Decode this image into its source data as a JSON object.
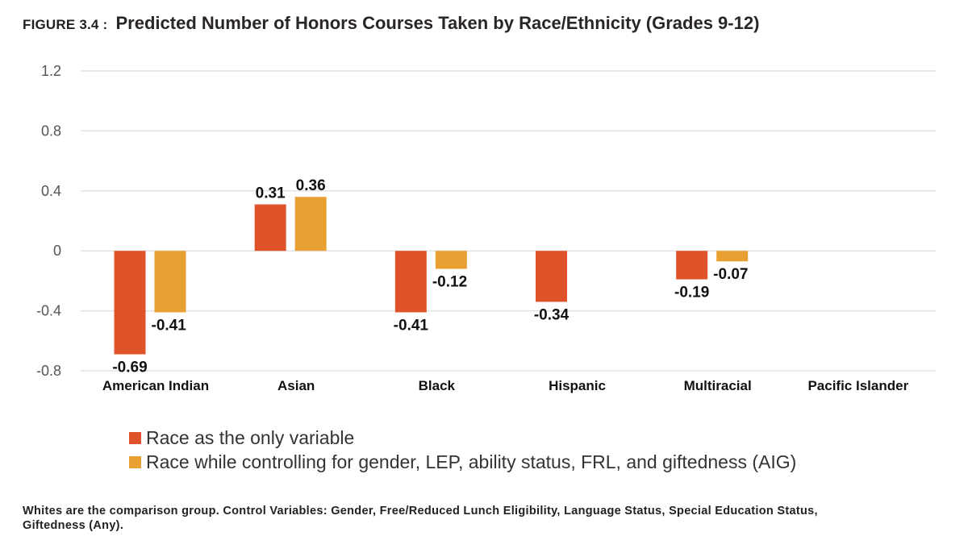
{
  "figure_label": "FIGURE 3.4 :",
  "title": "Predicted Number of Honors Courses Taken by Race/Ethnicity (Grades 9-12)",
  "note": "Whites are the comparison group. Control Variables: Gender, Free/Reduced Lunch Eligibility, Language Status, Special Education Status, Giftedness (Any).",
  "chart_data": {
    "type": "bar",
    "title": "Predicted Number of Honors Courses Taken by Race/Ethnicity (Grades 9-12)",
    "xlabel": "",
    "ylabel": "",
    "categories": [
      "American Indian",
      "Asian",
      "Black",
      "Hispanic",
      "Multiracial",
      "Pacific Islander"
    ],
    "series": [
      {
        "name": "Race as the only variable",
        "color": "#DF532A",
        "values": [
          -0.69,
          0.31,
          -0.41,
          -0.34,
          -0.19,
          null
        ]
      },
      {
        "name": "Race while controlling for gender, LEP, ability status, FRL, and giftedness (AIG)",
        "color": "#E8A033",
        "values": [
          -0.41,
          0.36,
          -0.12,
          null,
          -0.07,
          null
        ]
      }
    ],
    "data_labels": [
      [
        "-0.69",
        "0.31",
        "-0.41",
        "-0.34",
        "-0.19",
        ""
      ],
      [
        "-0.41",
        "0.36",
        "-0.12",
        "",
        "-0.07",
        ""
      ]
    ],
    "ylim": [
      -0.8,
      1.2
    ],
    "yticks": [
      -0.8,
      -0.4,
      0,
      0.4,
      0.8,
      1.2
    ],
    "ytick_labels": [
      "-0.8",
      "-0.4",
      "0",
      "0.4",
      "0.8",
      "1.2"
    ],
    "grid": true,
    "legend_position": "bottom-left"
  }
}
